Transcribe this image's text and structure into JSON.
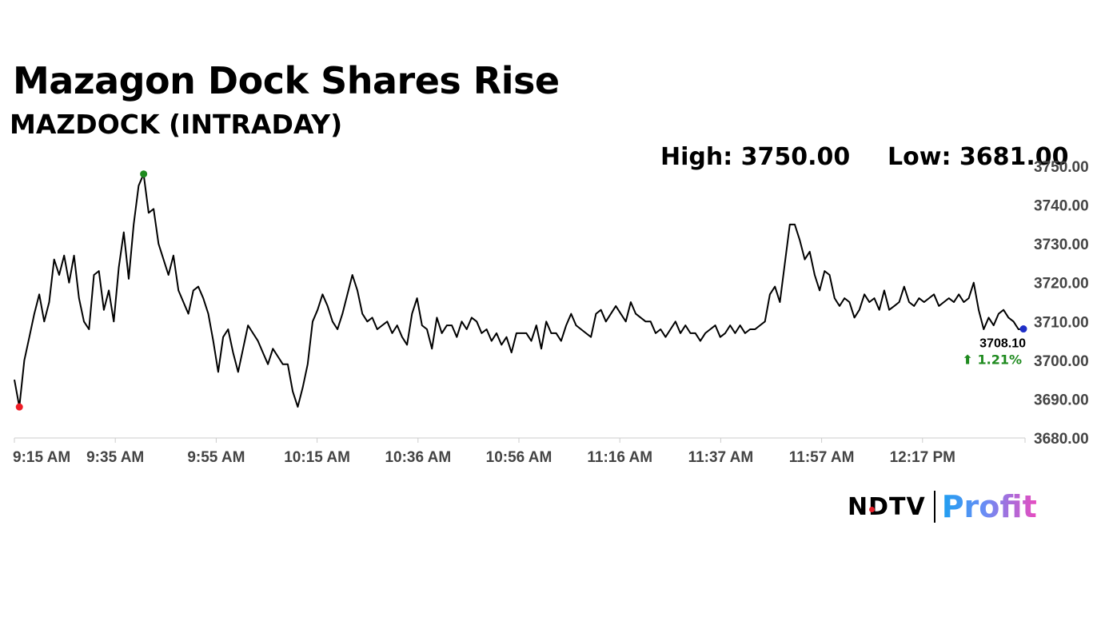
{
  "header": {
    "title": "Mazagon Dock Shares Rise",
    "subtitle": "MAZDOCK (INTRADAY)",
    "high_label": "High: 3750.00",
    "low_label": "Low: 3681.00"
  },
  "last_price": {
    "value_text": "3708.10",
    "change_text": "⬆ 1.21%",
    "change_color": "#1e8a1e"
  },
  "logo": {
    "part1": "NDTV",
    "part2": "Profit"
  },
  "colors": {
    "line": "#000000",
    "high_marker": "#1e8a1e",
    "low_marker": "#ee1c25",
    "last_marker": "#1f2fc7",
    "axis": "#cccccc",
    "tick_text": "#444444"
  },
  "chart_data": {
    "type": "line",
    "title": "MAZDOCK (INTRADAY)",
    "x_tick_labels": [
      "9:15 AM",
      "9:35 AM",
      "9:55 AM",
      "10:15 AM",
      "10:36 AM",
      "10:56 AM",
      "11:16 AM",
      "11:37 AM",
      "11:57 AM",
      "12:17 PM"
    ],
    "y_tick_labels": [
      "3750.00",
      "3740.00",
      "3730.00",
      "3720.00",
      "3710.00",
      "3700.00",
      "3690.00",
      "3680.00"
    ],
    "ylim": [
      3680,
      3750
    ],
    "y_axis_position": "right",
    "grid": false,
    "series": [
      {
        "values": [
          3695,
          3688,
          3700,
          3706,
          3712,
          3717,
          3710,
          3715,
          3726,
          3722,
          3727,
          3720,
          3727,
          3716,
          3710,
          3708,
          3722,
          3723,
          3713,
          3718,
          3710,
          3724,
          3733,
          3721,
          3735,
          3745,
          3748,
          3738,
          3739,
          3730,
          3726,
          3722,
          3727,
          3718,
          3715,
          3712,
          3718,
          3719,
          3716,
          3712,
          3705,
          3697,
          3706,
          3708,
          3702,
          3697,
          3703,
          3709,
          3707,
          3705,
          3702,
          3699,
          3703,
          3701,
          3699,
          3699,
          3692,
          3688,
          3693,
          3699,
          3710,
          3713,
          3717,
          3714,
          3710,
          3708,
          3712,
          3717,
          3722,
          3718,
          3712,
          3710,
          3711,
          3708,
          3709,
          3710,
          3707,
          3709,
          3706,
          3704,
          3712,
          3716,
          3709,
          3708,
          3703,
          3711,
          3707,
          3709,
          3709,
          3706,
          3710,
          3708,
          3711,
          3710,
          3707,
          3708,
          3705,
          3707,
          3704,
          3706,
          3702,
          3707,
          3707,
          3707,
          3705,
          3709,
          3703,
          3710,
          3707,
          3707,
          3705,
          3709,
          3712,
          3709,
          3708,
          3707,
          3706,
          3712,
          3713,
          3710,
          3712,
          3714,
          3712,
          3710,
          3715,
          3712,
          3711,
          3710,
          3710,
          3707,
          3708,
          3706,
          3708,
          3710,
          3707,
          3709,
          3707,
          3707,
          3705,
          3707,
          3708,
          3709,
          3706,
          3707,
          3709,
          3707,
          3709,
          3707,
          3708,
          3708,
          3709,
          3710,
          3717,
          3719,
          3715,
          3725,
          3735,
          3735,
          3731,
          3726,
          3728,
          3722,
          3718,
          3723,
          3722,
          3716,
          3714,
          3716,
          3715,
          3711,
          3713,
          3717,
          3715,
          3716,
          3713,
          3718,
          3713,
          3714,
          3715,
          3719,
          3715,
          3714,
          3716,
          3715,
          3716,
          3717,
          3714,
          3715,
          3716,
          3715,
          3717,
          3715,
          3716,
          3720,
          3713,
          3708,
          3711,
          3709,
          3712,
          3713,
          3711,
          3710,
          3708,
          3708.1
        ]
      }
    ],
    "high": {
      "value": 3750.0,
      "label": "High: 3750.00"
    },
    "low": {
      "value": 3681.0,
      "label": "Low: 3681.00"
    },
    "last": {
      "value": 3708.1,
      "change_pct": 1.21
    }
  }
}
